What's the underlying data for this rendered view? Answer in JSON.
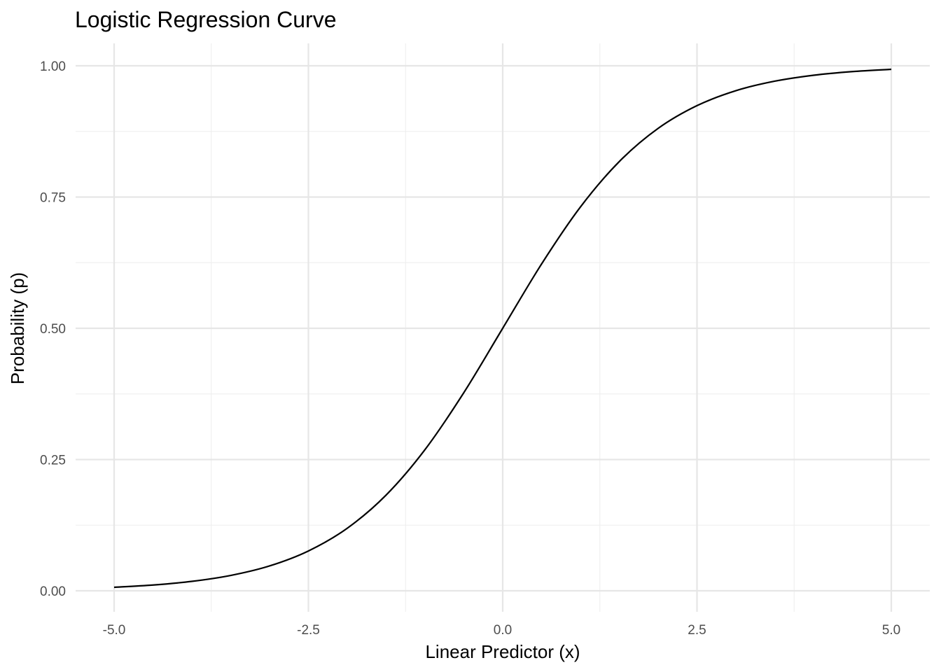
{
  "chart_data": {
    "type": "line",
    "title": "Logistic Regression Curve",
    "xlabel": "Linear Predictor (x)",
    "ylabel": "Probability (p)",
    "xlim": [
      -5,
      5
    ],
    "ylim": [
      0,
      1
    ],
    "grid": true,
    "x_ticks": [
      -5,
      -2.5,
      0,
      2.5,
      5
    ],
    "x_tick_labels": [
      "-5.0",
      "-2.5",
      "0.0",
      "2.5",
      "5.0"
    ],
    "x_minor_ticks": [
      -3.75,
      -1.25,
      1.25,
      3.75
    ],
    "y_ticks": [
      0,
      0.25,
      0.5,
      0.75,
      1
    ],
    "y_tick_labels": [
      "0.00",
      "0.25",
      "0.50",
      "0.75",
      "1.00"
    ],
    "y_minor_ticks": [
      0.125,
      0.375,
      0.625,
      0.875
    ],
    "line_color": "#000000",
    "series": [
      {
        "x": [
          -5,
          -4.5,
          -4,
          -3.5,
          -3,
          -2.5,
          -2,
          -1.5,
          -1,
          -0.5,
          0,
          0.5,
          1,
          1.5,
          2,
          2.5,
          3,
          3.5,
          4,
          4.5,
          5
        ],
        "values": [
          0.0067,
          0.011,
          0.018,
          0.0293,
          0.0474,
          0.0759,
          0.1192,
          0.1824,
          0.2689,
          0.3775,
          0.5,
          0.6225,
          0.7311,
          0.8176,
          0.8808,
          0.9241,
          0.9526,
          0.9707,
          0.982,
          0.989,
          0.9933
        ]
      }
    ]
  }
}
